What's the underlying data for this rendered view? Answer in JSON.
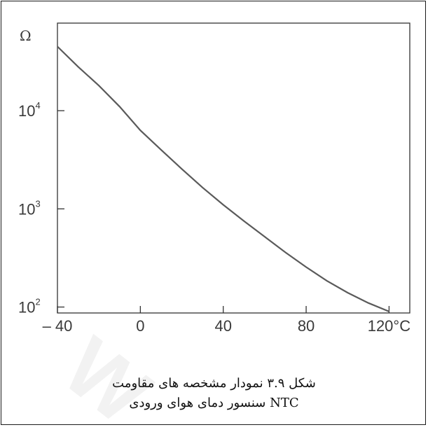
{
  "chart_data": {
    "type": "line",
    "y_unit_label": "Ω",
    "y_scale": "log",
    "x_tick_labels": [
      "– 40",
      "0",
      "40",
      "80",
      "120°C"
    ],
    "x_ticks": [
      -40,
      0,
      40,
      80,
      120
    ],
    "y_ticks": [
      {
        "value": 100,
        "base": "10",
        "exp": "2"
      },
      {
        "value": 1000,
        "base": "10",
        "exp": "3"
      },
      {
        "value": 10000,
        "base": "10",
        "exp": "4"
      }
    ],
    "xlim": [
      -40,
      130
    ],
    "ylim": [
      87,
      78000
    ],
    "series": [
      {
        "color": "#5a5a5a",
        "x": [
          -40,
          -30,
          -20,
          -10,
          0,
          10,
          20,
          30,
          40,
          50,
          60,
          70,
          80,
          90,
          100,
          110,
          120
        ],
        "y": [
          45000,
          28000,
          18000,
          11000,
          6300,
          4000,
          2550,
          1650,
          1100,
          750,
          520,
          360,
          255,
          185,
          140,
          110,
          90
        ]
      }
    ]
  },
  "caption": {
    "line1": "شکل ۳.۹ نمودار مشخصه های مقاومت",
    "line2": "NTC سنسور دمای هوای ورودی"
  }
}
